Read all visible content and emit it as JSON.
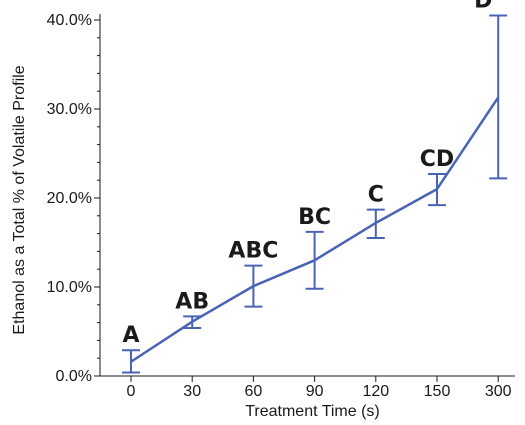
{
  "chart_data": {
    "type": "line",
    "xlabel": "Treatment Time (s)",
    "ylabel": "Ethanol as a Total % of Volatile Profile",
    "categories": [
      "0",
      "30",
      "60",
      "90",
      "120",
      "150",
      "300"
    ],
    "series": [
      {
        "values": [
          1.6,
          6.1,
          10.1,
          13.0,
          17.2,
          21.0,
          31.3
        ],
        "error_low": [
          0.4,
          5.4,
          7.8,
          9.8,
          15.5,
          19.2,
          22.2
        ],
        "error_high": [
          2.9,
          6.7,
          12.4,
          16.2,
          18.7,
          22.7,
          40.5
        ],
        "significance_labels": [
          "A",
          "AB",
          "ABC",
          "BC",
          "C",
          "CD",
          "D"
        ]
      }
    ],
    "ylim": [
      0,
      40
    ],
    "yticks": [
      0,
      10,
      20,
      30,
      40
    ],
    "ytick_labels": [
      "0.0%",
      "10.0%",
      "20.0%",
      "30.0%",
      "40.0%"
    ],
    "grid": false,
    "colors": {
      "line": "#4a63b5",
      "axis": "#1a1a1a",
      "text": "#1a1a1a"
    }
  }
}
